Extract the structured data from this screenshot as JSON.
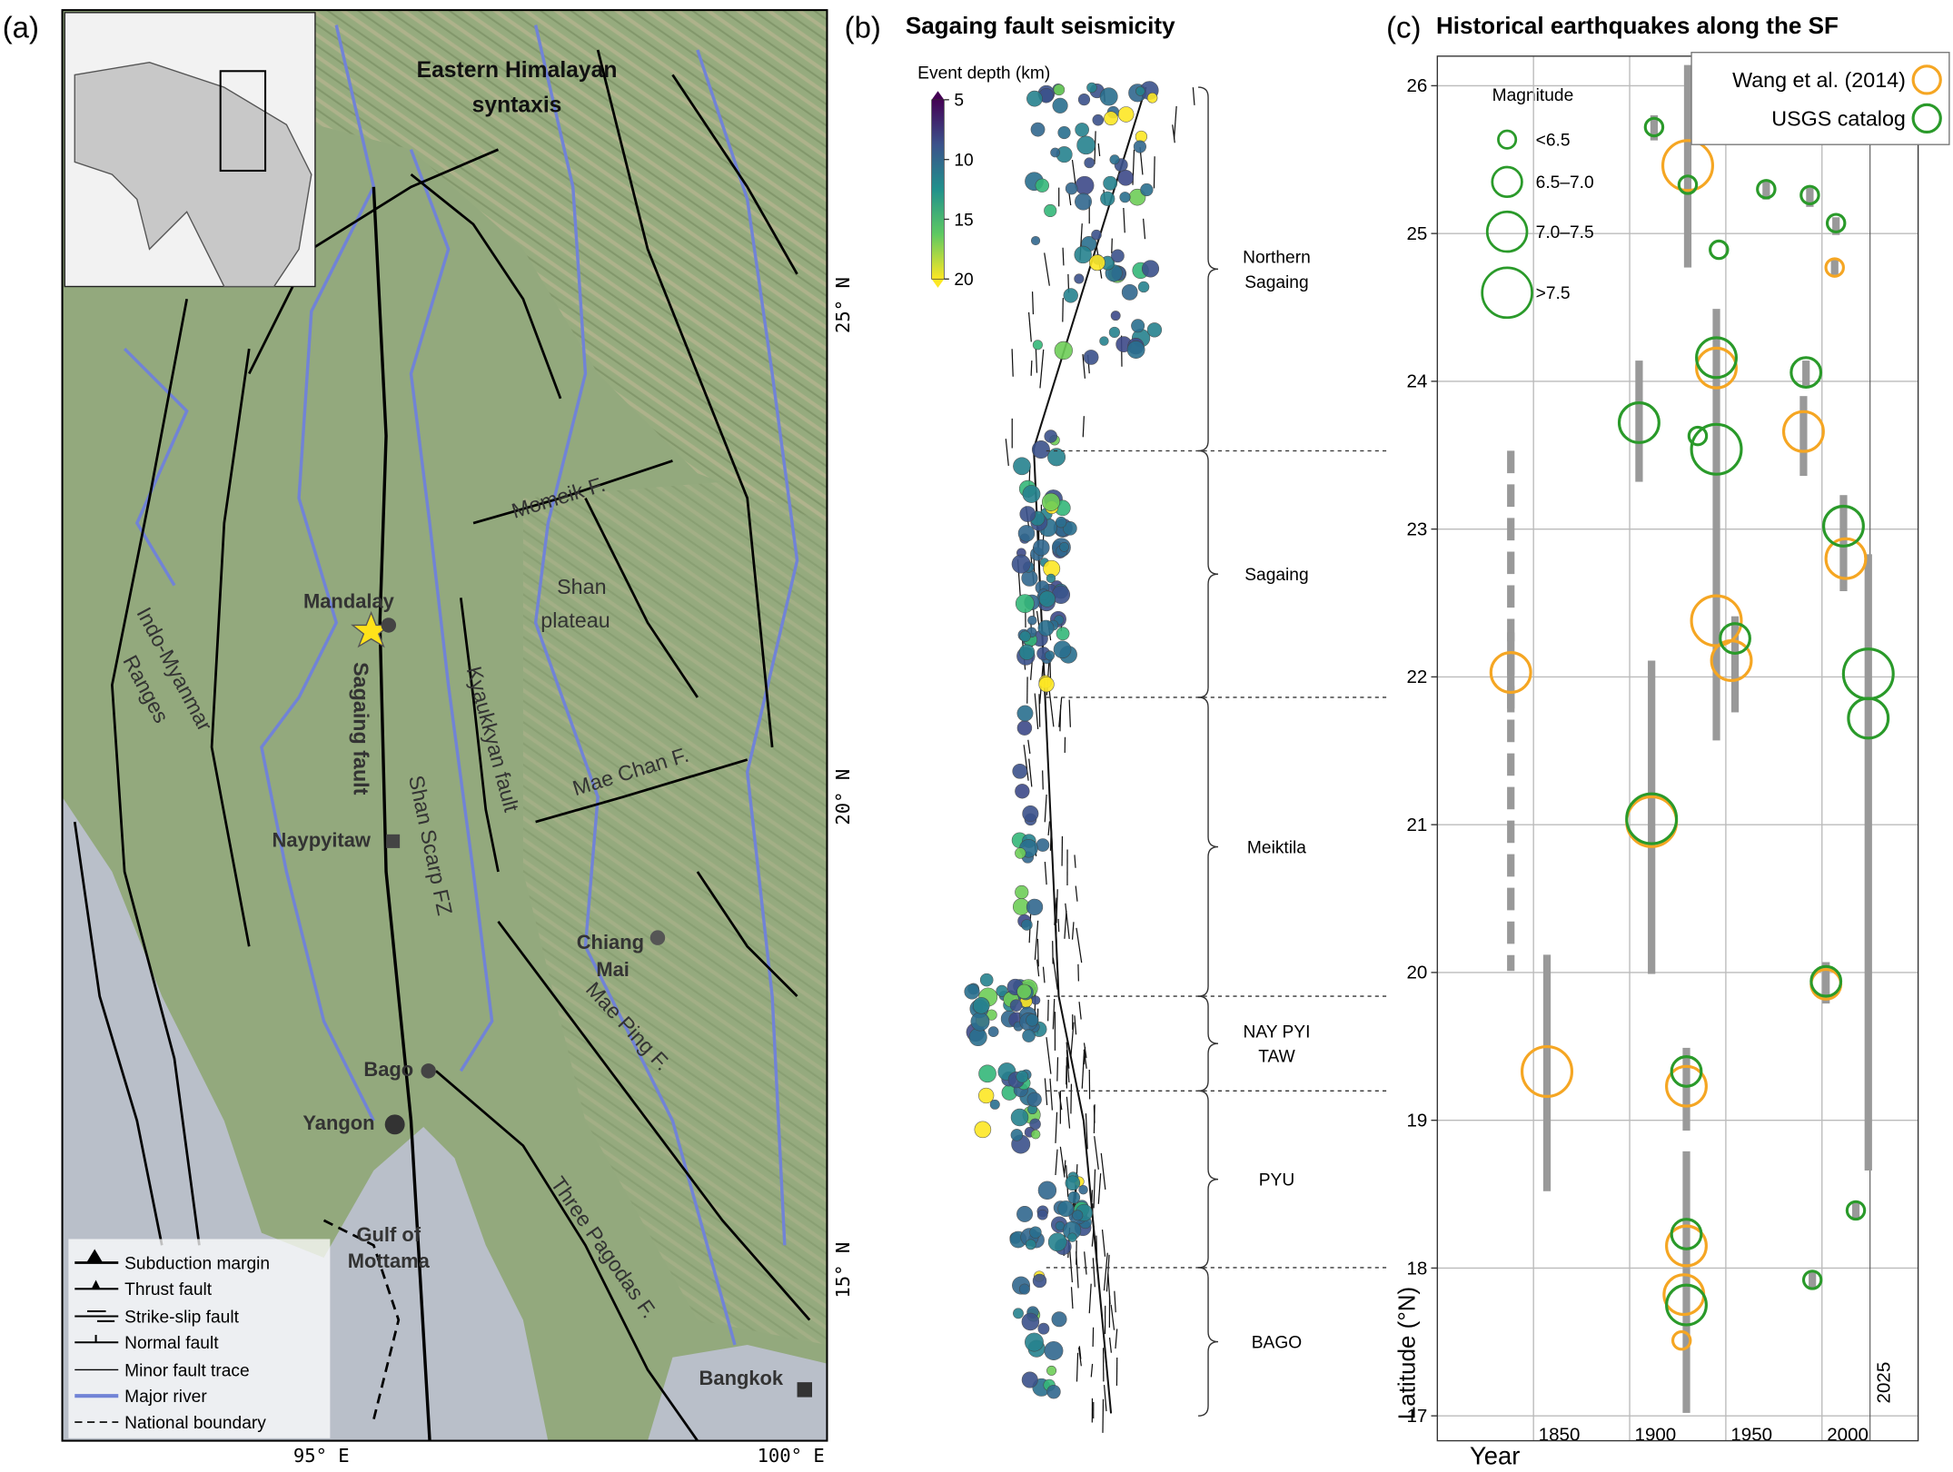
{
  "panel_a": {
    "label": "(a)",
    "map_labels": [
      "Eastern Himalayan",
      "syntaxis",
      "Momeik F.",
      "Shan",
      "plateau",
      "Mandalay",
      "Sagaing fault",
      "Shan Scarp FZ",
      "Kyaukkyan fault",
      "Indo-Myanmar",
      "Ranges",
      "Mae Chan F.",
      "Naypyitaw",
      "Chiang",
      "Mai",
      "Mae Ping F.",
      "Bago",
      "Yangon",
      "Gulf of",
      "Mottama",
      "Three Pagodas F.",
      "Bangkok"
    ],
    "lat_ticks": [
      "25° N",
      "20° N",
      "15° N"
    ],
    "lon_ticks": [
      "95° E",
      "100° E"
    ],
    "legend": [
      "Subduction margin",
      "Thrust fault",
      "Strike-slip fault",
      "Normal fault",
      "Minor fault trace",
      "Major river",
      "National boundary"
    ]
  },
  "panel_b": {
    "label": "(b)",
    "title": "Sagaing fault seismicity",
    "colorbar": {
      "title": "Event depth (km)",
      "lim": [
        5,
        20
      ],
      "ticks": [
        5,
        10,
        15,
        20
      ]
    },
    "segments": [
      [
        "Northern",
        "Sagaing"
      ],
      [
        "Sagaing"
      ],
      [
        "Meiktila"
      ],
      [
        "NAY PYI",
        "TAW"
      ],
      [
        "PYU"
      ],
      [
        "BAGO"
      ]
    ]
  },
  "chart_data": {
    "type": "scatter",
    "panel_label": "(c)",
    "title": "Historical earthquakes along the SF",
    "x_label": "Year",
    "y_label": "Latitude (°N)",
    "xlim": [
      1800,
      2050
    ],
    "ylim": [
      17,
      26.2
    ],
    "xticks": [
      1850,
      1900,
      1950,
      2000
    ],
    "yticks": [
      17,
      18,
      19,
      20,
      21,
      22,
      23,
      24,
      25,
      26
    ],
    "year_marker": 2025,
    "grid": true,
    "magnitude_legend": {
      "title": "Magnitude",
      "entries": [
        {
          "value": 6.2,
          "label": "<6.5"
        },
        {
          "value": 6.8,
          "label": "6.5–7.0"
        },
        {
          "value": 7.3,
          "label": "7.0–7.5"
        },
        {
          "value": 7.8,
          "label": ">7.5"
        }
      ]
    },
    "series": [
      {
        "name": "Wang et al. (2014)",
        "color": "#f5a623",
        "x": [
          1838.2,
          1857,
          1911.4,
          1930.2,
          1945.1,
          1945.1,
          1952.9,
          1929.5,
          1929.5,
          1928.2,
          1927,
          1990.4,
          2012.4,
          2002.1,
          2006.6
        ],
        "y": [
          22.03,
          19.33,
          21.02,
          25.46,
          24.09,
          22.38,
          22.11,
          19.23,
          18.15,
          17.82,
          17.51,
          23.66,
          22.8,
          19.92,
          24.77
        ],
        "magnitude": [
          7.3,
          7.8,
          7.8,
          7.8,
          7.3,
          7.8,
          7.3,
          7.3,
          7.3,
          7.3,
          6.2,
          7.3,
          7.3,
          6.8,
          6.2
        ]
      },
      {
        "name": "USGS catalog",
        "color": "#2a9a2a",
        "x": [
          1912.7,
          1930.2,
          1946.4,
          1971,
          1993.7,
          2007.3,
          1945.1,
          1991.7,
          1904.9,
          1935.4,
          1945.1,
          2011.2,
          1954.8,
          2024.1,
          2024.1,
          1911.4,
          2002.1,
          1929.5,
          1929.5,
          1929.5,
          2017.6,
          1995
        ],
        "y": [
          25.72,
          25.33,
          24.89,
          25.3,
          25.26,
          25.07,
          24.16,
          24.06,
          23.72,
          23.63,
          23.54,
          23.02,
          22.26,
          22.02,
          21.72,
          21.04,
          19.94,
          19.33,
          18.23,
          17.75,
          18.39,
          17.92
        ],
        "magnitude": [
          6.2,
          6.2,
          6.2,
          6.2,
          6.2,
          6.2,
          7.3,
          6.8,
          7.3,
          6.2,
          7.8,
          7.3,
          6.8,
          7.8,
          7.3,
          7.8,
          6.8,
          6.8,
          6.8,
          7.3,
          6.2,
          6.2
        ]
      }
    ],
    "ruptures": {
      "color": "#999999",
      "x": [
        1838.2,
        1838.2,
        1857,
        1904.9,
        1911.4,
        1912.7,
        1930.2,
        1945.1,
        1954.8,
        1929.5,
        1929.5,
        1990.4,
        1991.7,
        2011.2,
        2024.1,
        2002.1,
        1971,
        1993.7,
        2007.3,
        2017.6,
        1995,
        2006.6
      ],
      "y_low": [
        20.01,
        21.76,
        18.52,
        23.32,
        19.99,
        25.63,
        24.77,
        21.57,
        21.76,
        18.93,
        17.02,
        23.36,
        23.97,
        22.58,
        18.66,
        19.79,
        25.23,
        25.18,
        24.99,
        18.33,
        17.86,
        24.72
      ],
      "y_high": [
        23.53,
        22.3,
        20.12,
        24.14,
        22.11,
        25.8,
        26.14,
        24.49,
        22.41,
        19.49,
        18.79,
        23.9,
        24.14,
        23.23,
        22.83,
        20.07,
        25.36,
        25.31,
        25.11,
        18.45,
        17.98,
        24.83
      ],
      "dashed": [
        true,
        false,
        false,
        false,
        false,
        false,
        false,
        false,
        false,
        false,
        false,
        false,
        false,
        false,
        false,
        false,
        false,
        false,
        false,
        false,
        false,
        false
      ]
    }
  }
}
